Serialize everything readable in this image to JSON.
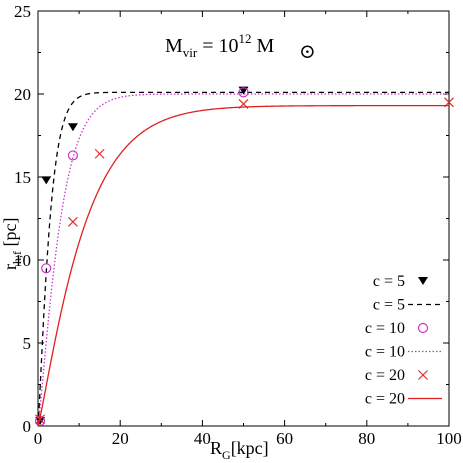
{
  "chart_data": {
    "type": "scatter",
    "title": "",
    "annotation": {
      "main": "M",
      "sub": "vir",
      "mid": " = 10",
      "sup": "12",
      "tail": " M",
      "symbol": "⊙"
    },
    "xlabel": {
      "main": "R",
      "sub": "G",
      "tail": "[kpc]"
    },
    "ylabel": {
      "main": "r",
      "sub": "h,f",
      "tail": " [pc]"
    },
    "xlim": [
      0,
      100
    ],
    "ylim": [
      0,
      25
    ],
    "xticks": [
      0,
      20,
      40,
      60,
      80,
      100
    ],
    "yticks": [
      0,
      5,
      10,
      15,
      20,
      25
    ],
    "grid": false,
    "legend_position": "bottom-right",
    "series": [
      {
        "name": "c = 5",
        "kind": "points",
        "marker": "down-triangle",
        "color": "#000000",
        "points": [
          [
            0.5,
            0.3
          ],
          [
            2,
            14.8
          ],
          [
            8.5,
            18.0
          ],
          [
            50,
            20.2
          ]
        ]
      },
      {
        "name": "c = 5",
        "kind": "line",
        "style": "dashed",
        "color": "#000000",
        "curve": {
          "plateau": 20.1,
          "scale": 3.0,
          "power": 1.2
        }
      },
      {
        "name": "c = 10",
        "kind": "points",
        "marker": "circle",
        "color": "#cc33cc",
        "points": [
          [
            0.5,
            0.3
          ],
          [
            2,
            9.5
          ],
          [
            8.5,
            16.3
          ],
          [
            50,
            20.1
          ]
        ]
      },
      {
        "name": "c = 10",
        "kind": "line",
        "style": "dotted",
        "color": "#cc33cc",
        "curve": {
          "plateau": 20.0,
          "scale": 5.6,
          "power": 1.2
        }
      },
      {
        "name": "c = 20",
        "kind": "points",
        "marker": "x",
        "color": "#e03030",
        "points": [
          [
            0.5,
            0.4
          ],
          [
            8.5,
            12.3
          ],
          [
            15,
            16.4
          ],
          [
            50,
            19.4
          ],
          [
            100,
            19.5
          ]
        ]
      },
      {
        "name": "c = 20",
        "kind": "line",
        "style": "solid",
        "color": "#e02020",
        "curve": {
          "plateau": 19.3,
          "scale": 11.5,
          "power": 1.15
        }
      }
    ]
  }
}
